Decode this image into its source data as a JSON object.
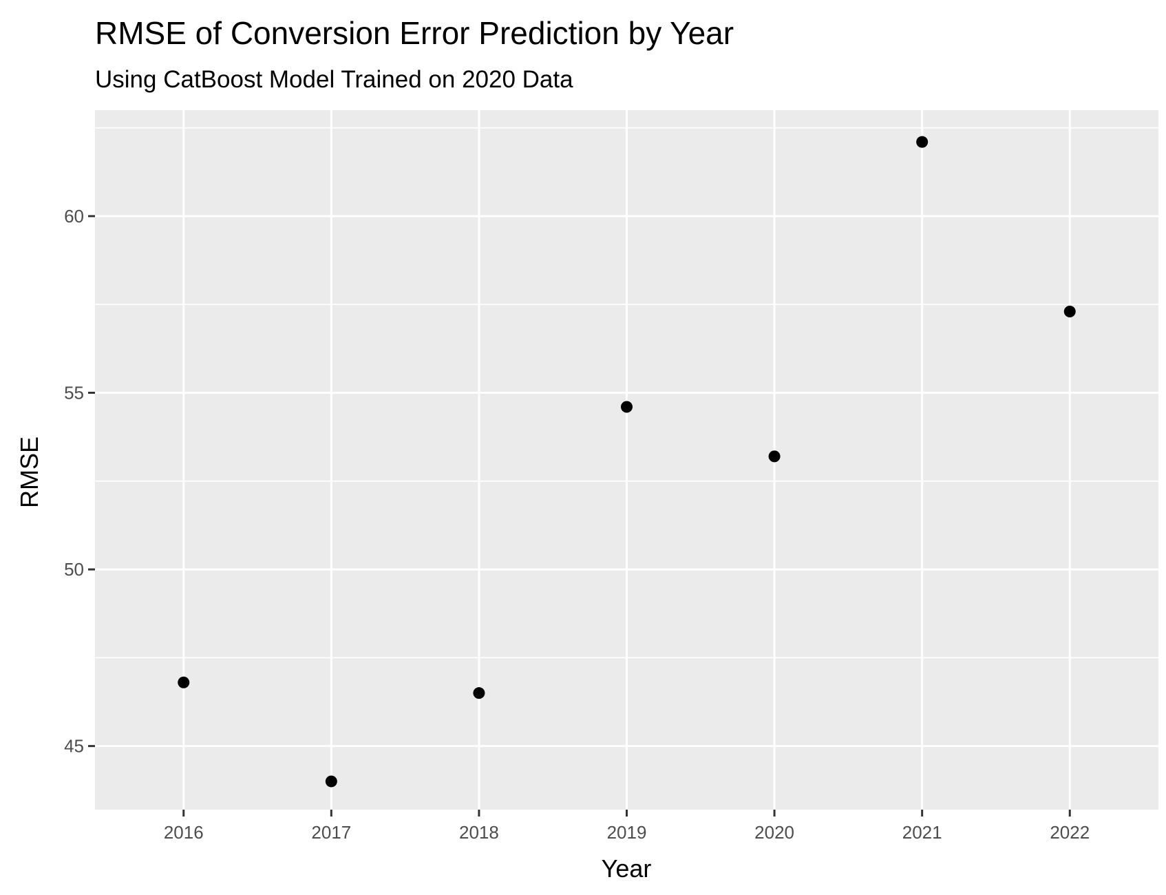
{
  "chart_data": {
    "type": "scatter",
    "title": "RMSE of Conversion Error Prediction by Year",
    "subtitle": "Using CatBoost Model Trained on 2020 Data",
    "xlabel": "Year",
    "ylabel": "RMSE",
    "x": [
      2016,
      2017,
      2018,
      2019,
      2020,
      2021,
      2022
    ],
    "y": [
      46.8,
      44.0,
      46.5,
      54.6,
      53.2,
      62.1,
      57.3
    ],
    "xticks": [
      "2016",
      "2017",
      "2018",
      "2019",
      "2020",
      "2021",
      "2022"
    ],
    "yticks": [
      45,
      50,
      55,
      60
    ],
    "xlim": [
      2015.4,
      2022.6
    ],
    "ylim": [
      43.2,
      63.0
    ],
    "grid": true,
    "legend": "none",
    "colors": {
      "panel_background": "#ebebeb",
      "grid": "#ffffff",
      "point": "#000000",
      "tick_text": "#4d4d4d",
      "tick_mark": "#333333"
    }
  }
}
